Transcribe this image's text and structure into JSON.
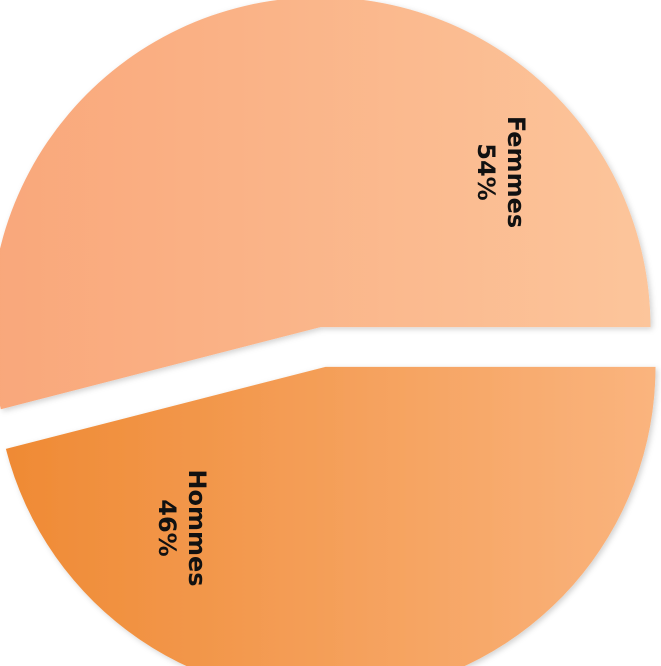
{
  "chart_data": {
    "type": "pie",
    "title": "",
    "categories": [
      "Femmes",
      "Hommes"
    ],
    "values": [
      54,
      46
    ],
    "value_labels": [
      "54%",
      "46%"
    ],
    "exploded": true,
    "legend": "none",
    "colors": {
      "Femmes": [
        "#f9a77a",
        "#fcc59b"
      ],
      "Hommes": [
        "#ef8a34",
        "#fab47e"
      ]
    }
  }
}
